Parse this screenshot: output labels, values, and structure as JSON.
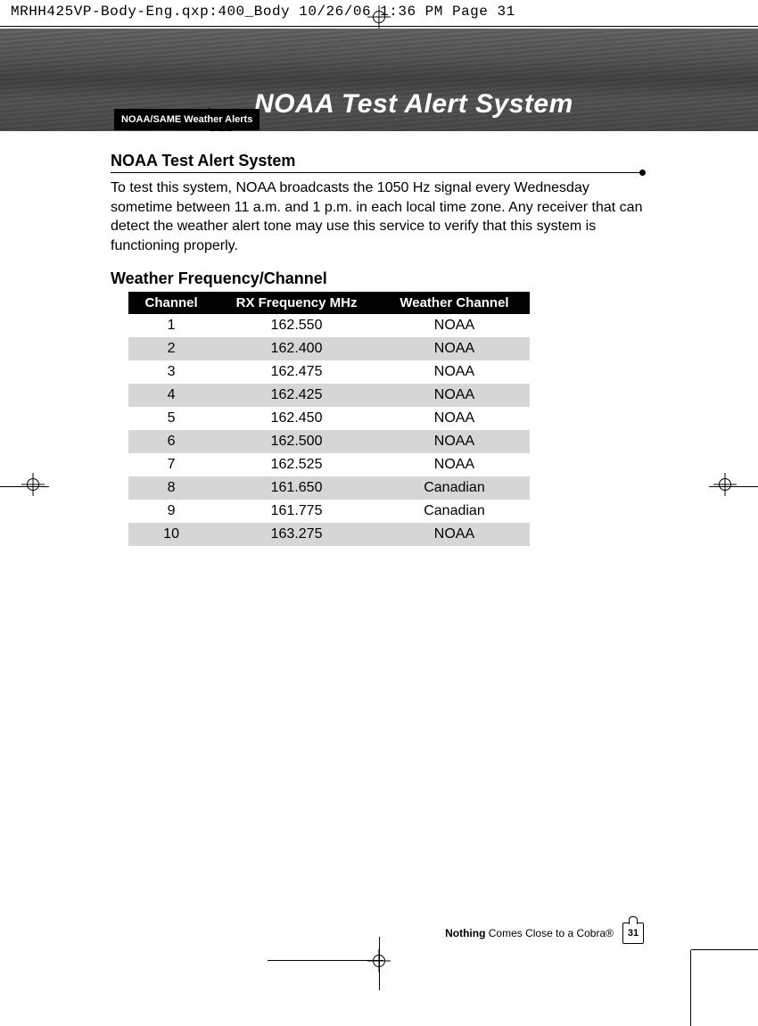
{
  "cropLine": "MRHH425VP-Body-Eng.qxp:400_Body  10/26/06  1:36 PM  Page 31",
  "header": {
    "title": "NOAA Test Alert System",
    "tab": "NOAA/SAME Weather Alerts"
  },
  "section": {
    "title": "NOAA Test Alert System",
    "body": "To test this system, NOAA broadcasts the 1050 Hz signal every Wednesday sometime between 11 a.m. and 1 p.m. in each local time zone. Any receiver that can detect the weather alert tone may use this service to verify that this system is functioning properly.",
    "subheading": "Weather Frequency/Channel"
  },
  "table": {
    "columns": [
      "Channel",
      "RX Frequency MHz",
      "Weather Channel"
    ],
    "header_bg": "#000000",
    "header_color": "#ffffff",
    "row_alt_bg": "#d6d6d6",
    "rows": [
      [
        "1",
        "162.550",
        "NOAA"
      ],
      [
        "2",
        "162.400",
        "NOAA"
      ],
      [
        "3",
        "162.475",
        "NOAA"
      ],
      [
        "4",
        "162.425",
        "NOAA"
      ],
      [
        "5",
        "162.450",
        "NOAA"
      ],
      [
        "6",
        "162.500",
        "NOAA"
      ],
      [
        "7",
        "162.525",
        "NOAA"
      ],
      [
        "8",
        "161.650",
        "Canadian"
      ],
      [
        "9",
        "161.775",
        "Canadian"
      ],
      [
        "10",
        "163.275",
        "NOAA"
      ]
    ]
  },
  "footer": {
    "tagline_bold": "Nothing",
    "tagline_rest": " Comes Close to a Cobra®",
    "page": "31"
  }
}
